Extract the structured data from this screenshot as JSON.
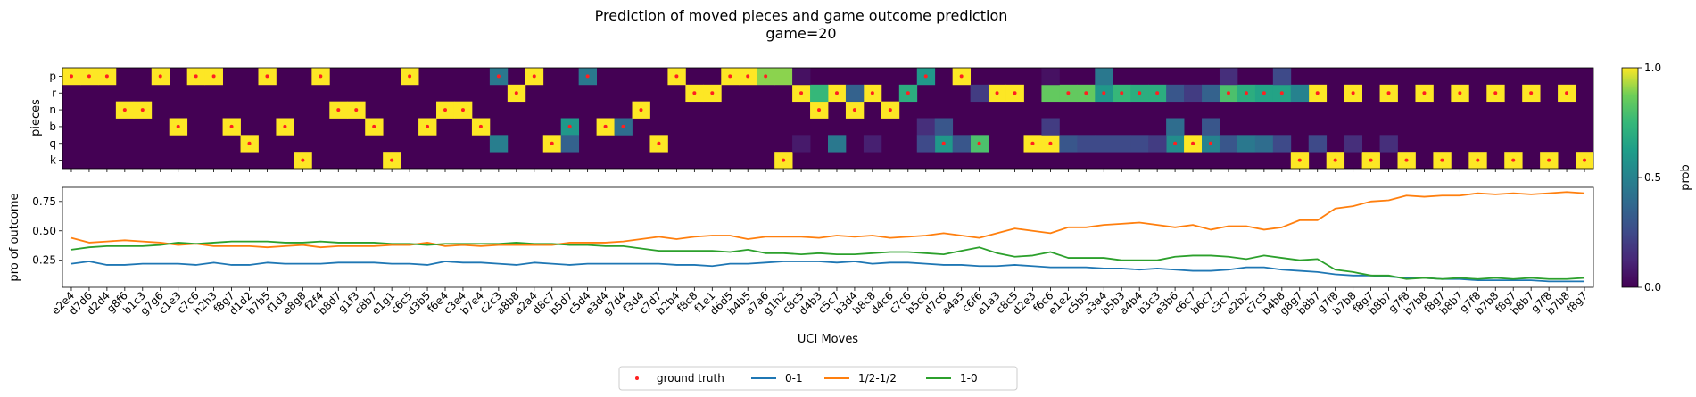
{
  "figure": {
    "title": "Prediction of moved pieces and game outcome prediction",
    "subtitle": "game=20"
  },
  "chart_data": [
    {
      "type": "heatmap",
      "ylabel": "pieces",
      "rows": [
        "p",
        "r",
        "n",
        "b",
        "q",
        "k"
      ],
      "colorbar": {
        "label": "prob",
        "ticks": [
          "0.0",
          "0.5",
          "1.0"
        ],
        "range": [
          0,
          1
        ],
        "colormap": "viridis"
      },
      "legend_ground_truth": "ground truth",
      "ground_truth_color": "#ff2020",
      "moves": [
        "e2e4",
        "d7d6",
        "d2d4",
        "g8f6",
        "b1c3",
        "g7g6",
        "c1e3",
        "c7c6",
        "h2h3",
        "f8g7",
        "d1d2",
        "b7b5",
        "f1d3",
        "e8g8",
        "f2f4",
        "b8d7",
        "g1f3",
        "c8b7",
        "e1g1",
        "c6c5",
        "d3b5",
        "f6e4",
        "c3e4",
        "b7e4",
        "c2c3",
        "a8b8",
        "a2a4",
        "d8c7",
        "b5d7",
        "c5d4",
        "e3d4",
        "g7d4",
        "f3d4",
        "c7d7",
        "b2b4",
        "f8c8",
        "f1e1",
        "d6d5",
        "b4b5",
        "a7a6",
        "g1h2",
        "c8c5",
        "d4b3",
        "c5c7",
        "b3d4",
        "b8c8",
        "d4c6",
        "c7c6",
        "b5c6",
        "d7c6",
        "a4a5",
        "c6f6",
        "a1a3",
        "c8c5",
        "d2e3",
        "f6c6",
        "e1e2",
        "c5b5",
        "a3a4",
        "b5b3",
        "a4b4",
        "b3c3",
        "e3b6",
        "c6c7",
        "b6c7",
        "c3c7",
        "e2b2",
        "c7c5",
        "b4b8",
        "g8g7",
        "b8b7",
        "g7f8",
        "b7b8",
        "f8g7",
        "b8b7",
        "g7f8",
        "b7b8",
        "f8g7",
        "b8b7",
        "g7f8",
        "b7b8",
        "f8g7",
        "b8b7",
        "g7f8",
        "b7b8",
        "f8g7"
      ],
      "ground_truth_rows": [
        0,
        0,
        0,
        2,
        2,
        0,
        3,
        0,
        0,
        3,
        4,
        0,
        3,
        5,
        0,
        2,
        2,
        3,
        5,
        0,
        3,
        2,
        2,
        3,
        0,
        1,
        0,
        4,
        3,
        0,
        3,
        3,
        2,
        4,
        0,
        1,
        1,
        0,
        0,
        0,
        5,
        1,
        2,
        1,
        2,
        1,
        2,
        1,
        0,
        4,
        0,
        4,
        1,
        1,
        4,
        4,
        1,
        1,
        1,
        1,
        1,
        1,
        4,
        4,
        4,
        1,
        1,
        1,
        1,
        5,
        1,
        5,
        1,
        5,
        1,
        5,
        1,
        5,
        1,
        5,
        1,
        5,
        1,
        5,
        1,
        5
      ],
      "noise_cells": [
        {
          "col": 24,
          "row": 0,
          "prob": 0.45
        },
        {
          "col": 24,
          "row": 4,
          "prob": 0.48
        },
        {
          "col": 28,
          "row": 3,
          "prob": 0.6
        },
        {
          "col": 28,
          "row": 4,
          "prob": 0.35
        },
        {
          "col": 29,
          "row": 0,
          "prob": 0.45
        },
        {
          "col": 31,
          "row": 3,
          "prob": 0.4
        },
        {
          "col": 41,
          "row": 0,
          "prob": 0.05
        },
        {
          "col": 41,
          "row": 4,
          "prob": 0.08
        },
        {
          "col": 43,
          "row": 4,
          "prob": 0.45
        },
        {
          "col": 45,
          "row": 4,
          "prob": 0.1
        },
        {
          "col": 48,
          "row": 0,
          "prob": 0.6
        },
        {
          "col": 48,
          "row": 3,
          "prob": 0.15
        },
        {
          "col": 48,
          "row": 4,
          "prob": 0.25
        },
        {
          "col": 49,
          "row": 3,
          "prob": 0.3
        },
        {
          "col": 50,
          "row": 4,
          "prob": 0.3
        },
        {
          "col": 51,
          "row": 1,
          "prob": 0.2
        },
        {
          "col": 55,
          "row": 0,
          "prob": 0.05
        },
        {
          "col": 55,
          "row": 3,
          "prob": 0.2
        },
        {
          "col": 56,
          "row": 4,
          "prob": 0.3
        },
        {
          "col": 57,
          "row": 4,
          "prob": 0.25
        },
        {
          "col": 58,
          "row": 0,
          "prob": 0.45
        },
        {
          "col": 58,
          "row": 4,
          "prob": 0.25
        },
        {
          "col": 59,
          "row": 4,
          "prob": 0.25
        },
        {
          "col": 60,
          "row": 4,
          "prob": 0.25
        },
        {
          "col": 61,
          "row": 4,
          "prob": 0.2
        },
        {
          "col": 62,
          "row": 1,
          "prob": 0.3
        },
        {
          "col": 62,
          "row": 3,
          "prob": 0.4
        },
        {
          "col": 63,
          "row": 1,
          "prob": 0.2
        },
        {
          "col": 64,
          "row": 1,
          "prob": 0.35
        },
        {
          "col": 64,
          "row": 3,
          "prob": 0.3
        },
        {
          "col": 65,
          "row": 0,
          "prob": 0.15
        },
        {
          "col": 65,
          "row": 4,
          "prob": 0.3
        },
        {
          "col": 66,
          "row": 4,
          "prob": 0.45
        },
        {
          "col": 67,
          "row": 4,
          "prob": 0.4
        },
        {
          "col": 68,
          "row": 0,
          "prob": 0.25
        },
        {
          "col": 68,
          "row": 4,
          "prob": 0.25
        },
        {
          "col": 69,
          "row": 1,
          "prob": 0.5
        },
        {
          "col": 70,
          "row": 4,
          "prob": 0.25
        },
        {
          "col": 72,
          "row": 4,
          "prob": 0.15
        },
        {
          "col": 74,
          "row": 4,
          "prob": 0.15
        }
      ],
      "near_truth_probs": [
        {
          "col": 39,
          "row": 0,
          "prob": 0.9
        },
        {
          "col": 40,
          "row": 0,
          "prob": 0.9
        },
        {
          "col": 42,
          "row": 1,
          "prob": 0.75
        },
        {
          "col": 44,
          "row": 1,
          "prob": 0.35
        },
        {
          "col": 47,
          "row": 1,
          "prob": 0.7
        },
        {
          "col": 49,
          "row": 4,
          "prob": 0.6
        },
        {
          "col": 51,
          "row": 4,
          "prob": 0.8
        },
        {
          "col": 55,
          "row": 1,
          "prob": 0.85
        },
        {
          "col": 56,
          "row": 1,
          "prob": 0.85
        },
        {
          "col": 57,
          "row": 1,
          "prob": 0.85
        },
        {
          "col": 58,
          "row": 1,
          "prob": 0.6
        },
        {
          "col": 59,
          "row": 1,
          "prob": 0.75
        },
        {
          "col": 60,
          "row": 1,
          "prob": 0.7
        },
        {
          "col": 61,
          "row": 1,
          "prob": 0.7
        },
        {
          "col": 62,
          "row": 4,
          "prob": 0.55
        },
        {
          "col": 64,
          "row": 4,
          "prob": 0.5
        },
        {
          "col": 65,
          "row": 1,
          "prob": 0.8
        },
        {
          "col": 66,
          "row": 1,
          "prob": 0.7
        },
        {
          "col": 67,
          "row": 1,
          "prob": 0.65
        },
        {
          "col": 68,
          "row": 1,
          "prob": 0.65
        }
      ]
    },
    {
      "type": "line",
      "ylabel": "pro of outcome",
      "xlabel": "UCI Moves",
      "yticks": [
        0.25,
        0.5,
        0.75
      ],
      "ylim": [
        0.02,
        0.87
      ],
      "series": [
        {
          "name": "0-1",
          "color": "#1f77b4",
          "values": [
            0.22,
            0.24,
            0.21,
            0.21,
            0.22,
            0.22,
            0.22,
            0.21,
            0.23,
            0.21,
            0.21,
            0.23,
            0.22,
            0.22,
            0.22,
            0.23,
            0.23,
            0.23,
            0.22,
            0.22,
            0.21,
            0.24,
            0.23,
            0.23,
            0.22,
            0.21,
            0.23,
            0.22,
            0.21,
            0.22,
            0.22,
            0.22,
            0.22,
            0.22,
            0.21,
            0.21,
            0.2,
            0.22,
            0.22,
            0.23,
            0.24,
            0.24,
            0.24,
            0.23,
            0.24,
            0.22,
            0.23,
            0.23,
            0.22,
            0.21,
            0.21,
            0.2,
            0.2,
            0.21,
            0.2,
            0.19,
            0.19,
            0.19,
            0.18,
            0.18,
            0.17,
            0.18,
            0.17,
            0.16,
            0.16,
            0.17,
            0.19,
            0.19,
            0.17,
            0.16,
            0.15,
            0.13,
            0.12,
            0.12,
            0.11,
            0.1,
            0.1,
            0.09,
            0.09,
            0.08,
            0.08,
            0.08,
            0.08,
            0.07,
            0.07,
            0.07
          ]
        },
        {
          "name": "1/2-1/2",
          "color": "#ff7f0e",
          "values": [
            0.44,
            0.4,
            0.41,
            0.42,
            0.41,
            0.4,
            0.38,
            0.39,
            0.37,
            0.37,
            0.37,
            0.36,
            0.37,
            0.38,
            0.36,
            0.37,
            0.37,
            0.37,
            0.38,
            0.38,
            0.4,
            0.37,
            0.38,
            0.37,
            0.38,
            0.38,
            0.38,
            0.38,
            0.4,
            0.4,
            0.4,
            0.41,
            0.43,
            0.45,
            0.43,
            0.45,
            0.46,
            0.46,
            0.43,
            0.45,
            0.45,
            0.45,
            0.44,
            0.46,
            0.45,
            0.46,
            0.44,
            0.45,
            0.46,
            0.48,
            0.46,
            0.44,
            0.48,
            0.52,
            0.5,
            0.48,
            0.53,
            0.53,
            0.55,
            0.56,
            0.57,
            0.55,
            0.53,
            0.55,
            0.51,
            0.54,
            0.54,
            0.51,
            0.53,
            0.59,
            0.59,
            0.69,
            0.71,
            0.75,
            0.76,
            0.8,
            0.79,
            0.8,
            0.8,
            0.82,
            0.81,
            0.82,
            0.81,
            0.82,
            0.83,
            0.82
          ]
        },
        {
          "name": "1-0",
          "color": "#2ca02c",
          "values": [
            0.34,
            0.36,
            0.37,
            0.37,
            0.37,
            0.38,
            0.4,
            0.39,
            0.4,
            0.41,
            0.41,
            0.41,
            0.4,
            0.4,
            0.41,
            0.4,
            0.4,
            0.4,
            0.39,
            0.39,
            0.38,
            0.39,
            0.39,
            0.39,
            0.39,
            0.4,
            0.39,
            0.39,
            0.38,
            0.38,
            0.37,
            0.37,
            0.35,
            0.33,
            0.33,
            0.33,
            0.33,
            0.32,
            0.34,
            0.31,
            0.31,
            0.3,
            0.31,
            0.3,
            0.3,
            0.31,
            0.32,
            0.32,
            0.31,
            0.3,
            0.33,
            0.36,
            0.31,
            0.28,
            0.29,
            0.32,
            0.27,
            0.27,
            0.27,
            0.25,
            0.25,
            0.25,
            0.28,
            0.29,
            0.29,
            0.28,
            0.26,
            0.29,
            0.27,
            0.25,
            0.26,
            0.17,
            0.15,
            0.12,
            0.12,
            0.09,
            0.1,
            0.09,
            0.1,
            0.09,
            0.1,
            0.09,
            0.1,
            0.09,
            0.09,
            0.1
          ]
        }
      ]
    }
  ]
}
